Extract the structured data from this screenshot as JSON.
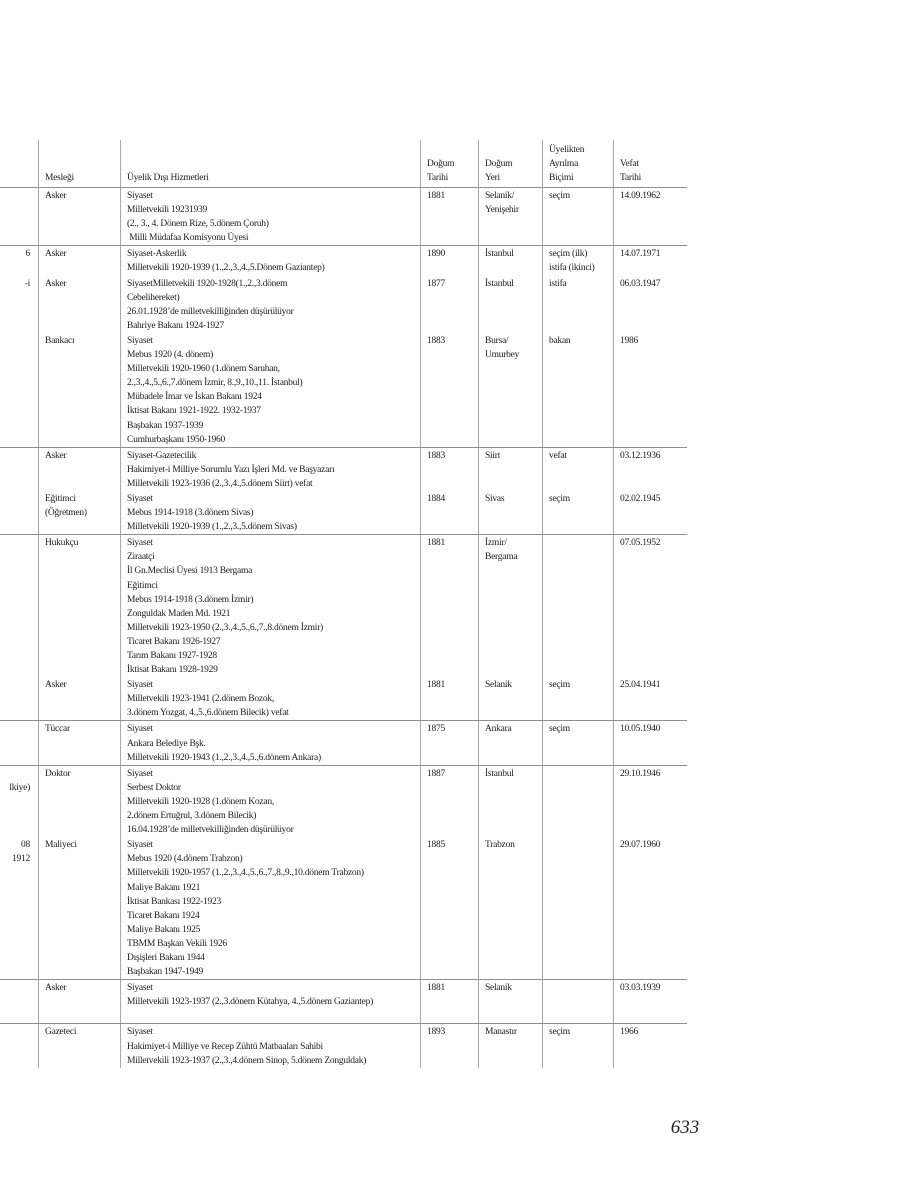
{
  "page": {
    "number": "633"
  },
  "colors": {
    "horizontal_rule": "#8f8f8f",
    "vertical_rule": "#a8a8a8",
    "text": "#1c1c1c"
  },
  "table": {
    "headers": {
      "fragment": [],
      "meslek": [
        "Mesleği"
      ],
      "hizmet": [
        "Üyelik Dışı Hizmetleri"
      ],
      "dogum_tarihi": [
        "Doğum",
        "Tarihi"
      ],
      "dogum_yeri": [
        "Doğum",
        "Yeri"
      ],
      "ayrilma": [
        "Üyelikten",
        "Ayrılma",
        "Biçimi"
      ],
      "vefat": [
        "Vefat",
        "Tarihi"
      ]
    },
    "rows": [
      {
        "fragment": [],
        "meslek": [
          "Asker"
        ],
        "hizmet": [
          "Siyaset",
          "Milletvekili 19231939",
          "(2., 3., 4. Dönem Rize, 5.dönem Çoruh)",
          " Milli Müdafaa Komisyonu Üyesi"
        ],
        "dogum_tarihi": [
          "1881"
        ],
        "dogum_yeri": [
          "Selanik/",
          "Yenişehir"
        ],
        "ayrilma": [
          "seçim"
        ],
        "vefat": [
          "14.09.1962"
        ],
        "sep": false
      },
      {
        "fragment": [
          "6"
        ],
        "meslek": [
          "Asker"
        ],
        "hizmet": [
          "Siyaset-Askerlik",
          "Milletvekili 1920-1939 (1.,2.,3.,4.,5.Dönem Gaziantep)"
        ],
        "dogum_tarihi": [
          "1890"
        ],
        "dogum_yeri": [
          "İstanbul"
        ],
        "ayrilma": [
          "seçim (ilk)",
          "istifa (ikinci)"
        ],
        "vefat": [
          "14.07.1971"
        ],
        "sep": true
      },
      {
        "fragment": [
          "-i"
        ],
        "meslek": [
          "Asker"
        ],
        "hizmet": [
          "SiyasetMilletvekili 1920-1928(1.,2.,3.dönem",
          "Cebelihereket)",
          "26.01.1928’de milletvekilliğinden düşürülüyor",
          "Bahriye Bakanı 1924-1927"
        ],
        "dogum_tarihi": [
          "1877"
        ],
        "dogum_yeri": [
          "İstanbul"
        ],
        "ayrilma": [
          "istifa"
        ],
        "vefat": [
          "06.03.1947"
        ],
        "sep": false
      },
      {
        "fragment": [],
        "meslek": [
          "Bankacı"
        ],
        "hizmet": [
          "Siyaset",
          "Mebus 1920 (4. dönem)",
          "Milletvekili 1920-1960 (1.dönem Saruhan,",
          "2.,3.,4.,5.,6.,7.dönem İzmir, 8.,9.,10.,11. İstanbul)",
          "Mübadele İmar ve İskan Bakanı 1924",
          "İktisat Bakanı 1921-1922. 1932-1937",
          "Başbakan 1937-1939",
          "Cumhurbaşkanı 1950-1960"
        ],
        "dogum_tarihi": [
          "1883"
        ],
        "dogum_yeri": [
          "Bursa/",
          "Umurbey"
        ],
        "ayrilma": [
          "bakan"
        ],
        "vefat": [
          "1986"
        ],
        "sep": false
      },
      {
        "fragment": [],
        "meslek": [
          "Asker"
        ],
        "hizmet": [
          "Siyaset-Gazetecilik",
          "Hakimiyet-i Milliye Sorumlu Yazı İşleri Md. ve Başyazarı",
          "Milletvekili 1923-1936 (2.,3.,4.,5.dönem Siirt) vefat"
        ],
        "dogum_tarihi": [
          "1883"
        ],
        "dogum_yeri": [
          "Siirt"
        ],
        "ayrilma": [
          "vefat"
        ],
        "vefat": [
          "03.12.1936"
        ],
        "sep": true
      },
      {
        "fragment": [],
        "meslek": [
          "Eğitimci",
          "(Öğretmen)"
        ],
        "hizmet": [
          "Siyaset",
          "Mebus 1914-1918 (3.dönem Sivas)",
          "Milletvekili 1920-1939 (1.,2.,3.,5.dönem Sivas)"
        ],
        "dogum_tarihi": [
          "1884"
        ],
        "dogum_yeri": [
          "Sivas"
        ],
        "ayrilma": [
          "seçim"
        ],
        "vefat": [
          "02.02.1945"
        ],
        "sep": false
      },
      {
        "fragment": [],
        "meslek": [
          "Hukukçu"
        ],
        "hizmet": [
          "Siyaset",
          "Ziraatçi",
          "İl Gn.Meclisi Üyesi 1913 Bergama",
          "Eğitimci",
          "Mebus 1914-1918 (3.dönem İzmir)",
          "Zonguldak Maden Md. 1921",
          "Milletvekili 1923-1950 (2.,3.,4.,5.,6.,7.,8.dönem İzmir)",
          "Ticaret Bakanı 1926-1927",
          "Tarım Bakanı 1927-1928",
          "İktisat Bakanı 1928-1929"
        ],
        "dogum_tarihi": [
          "1881"
        ],
        "dogum_yeri": [
          "İzmir/",
          "Bergama"
        ],
        "ayrilma": [],
        "vefat": [
          "07.05.1952"
        ],
        "sep": true
      },
      {
        "fragment": [],
        "meslek": [
          "Asker"
        ],
        "hizmet": [
          "Siyaset",
          "Milletvekili 1923-1941 (2.dönem Bozok,",
          "3.dönem Yozgat, 4.,5.,6.dönem Bilecik) vefat"
        ],
        "dogum_tarihi": [
          "1881"
        ],
        "dogum_yeri": [
          "Selanik"
        ],
        "ayrilma": [
          "seçim"
        ],
        "vefat": [
          "25.04.1941"
        ],
        "sep": false
      },
      {
        "fragment": [],
        "meslek": [
          "Tüccar"
        ],
        "hizmet": [
          "Siyaset",
          "Ankara Belediye Bşk.",
          "Milletvekili 1920-1943 (1.,2.,3.,4.,5.,6.dönem Ankara)"
        ],
        "dogum_tarihi": [
          "1875"
        ],
        "dogum_yeri": [
          "Ankara"
        ],
        "ayrilma": [
          "seçim"
        ],
        "vefat": [
          "10.05.1940"
        ],
        "sep": true
      },
      {
        "fragment": [
          "",
          "lkiye)"
        ],
        "meslek": [
          "Doktor"
        ],
        "hizmet": [
          "Siyaset",
          "Serbest Doktor",
          "Milletvekili 1920-1928 (1.dönem Kozan,",
          "2.dönem Ertuğrul, 3.dönem Bilecik)",
          "16.04.1928’de milletvekilliğinden düşürülüyor"
        ],
        "dogum_tarihi": [
          "1887"
        ],
        "dogum_yeri": [
          "İstanbul"
        ],
        "ayrilma": [],
        "vefat": [
          "29.10.1946"
        ],
        "sep": true
      },
      {
        "fragment": [
          "08",
          "1912"
        ],
        "meslek": [
          "Maliyeci"
        ],
        "hizmet": [
          "Siyaset",
          "Mebus 1920 (4.dönem Trabzon)",
          "Milletvekili 1920-1957 (1.,2.,3.,4.,5.,6.,7.,8.,9.,10.dönem Trabzon)",
          "Maliye Bakanı 1921",
          "İktisat Bankası 1922-1923",
          "Ticaret Bakanı 1924",
          "Maliye Bakanı 1925",
          "TBMM Başkan Vekili 1926",
          "Dışişleri Bakanı 1944",
          "Başbakan 1947-1949"
        ],
        "dogum_tarihi": [
          "1885"
        ],
        "dogum_yeri": [
          "Trabzon"
        ],
        "ayrilma": [],
        "vefat": [
          "29.07.1960"
        ],
        "sep": false
      },
      {
        "fragment": [],
        "meslek": [
          "Asker"
        ],
        "hizmet": [
          "Siyaset",
          "Milletvekili 1923-1937 (2.,3.dönem Kütahya, 4.,5.dönem Gaziantep)"
        ],
        "dogum_tarihi": [
          "1881"
        ],
        "dogum_yeri": [
          "Selanik"
        ],
        "ayrilma": [],
        "vefat": [
          "03.03.1939"
        ],
        "sep": true,
        "spacer": 1
      },
      {
        "fragment": [],
        "meslek": [
          "Gazeteci"
        ],
        "hizmet": [
          "Siyaset",
          "Hakimiyet-i Milliye ve Recep Zühtü Matbaaları Sahibi",
          "Milletvekili 1923-1937 (2.,3.,4.dönem Sinop, 5.dönem Zonguldak)"
        ],
        "dogum_tarihi": [
          "1893"
        ],
        "dogum_yeri": [
          "Manastır"
        ],
        "ayrilma": [
          "seçim"
        ],
        "vefat": [
          "1966"
        ],
        "sep": true
      }
    ]
  }
}
